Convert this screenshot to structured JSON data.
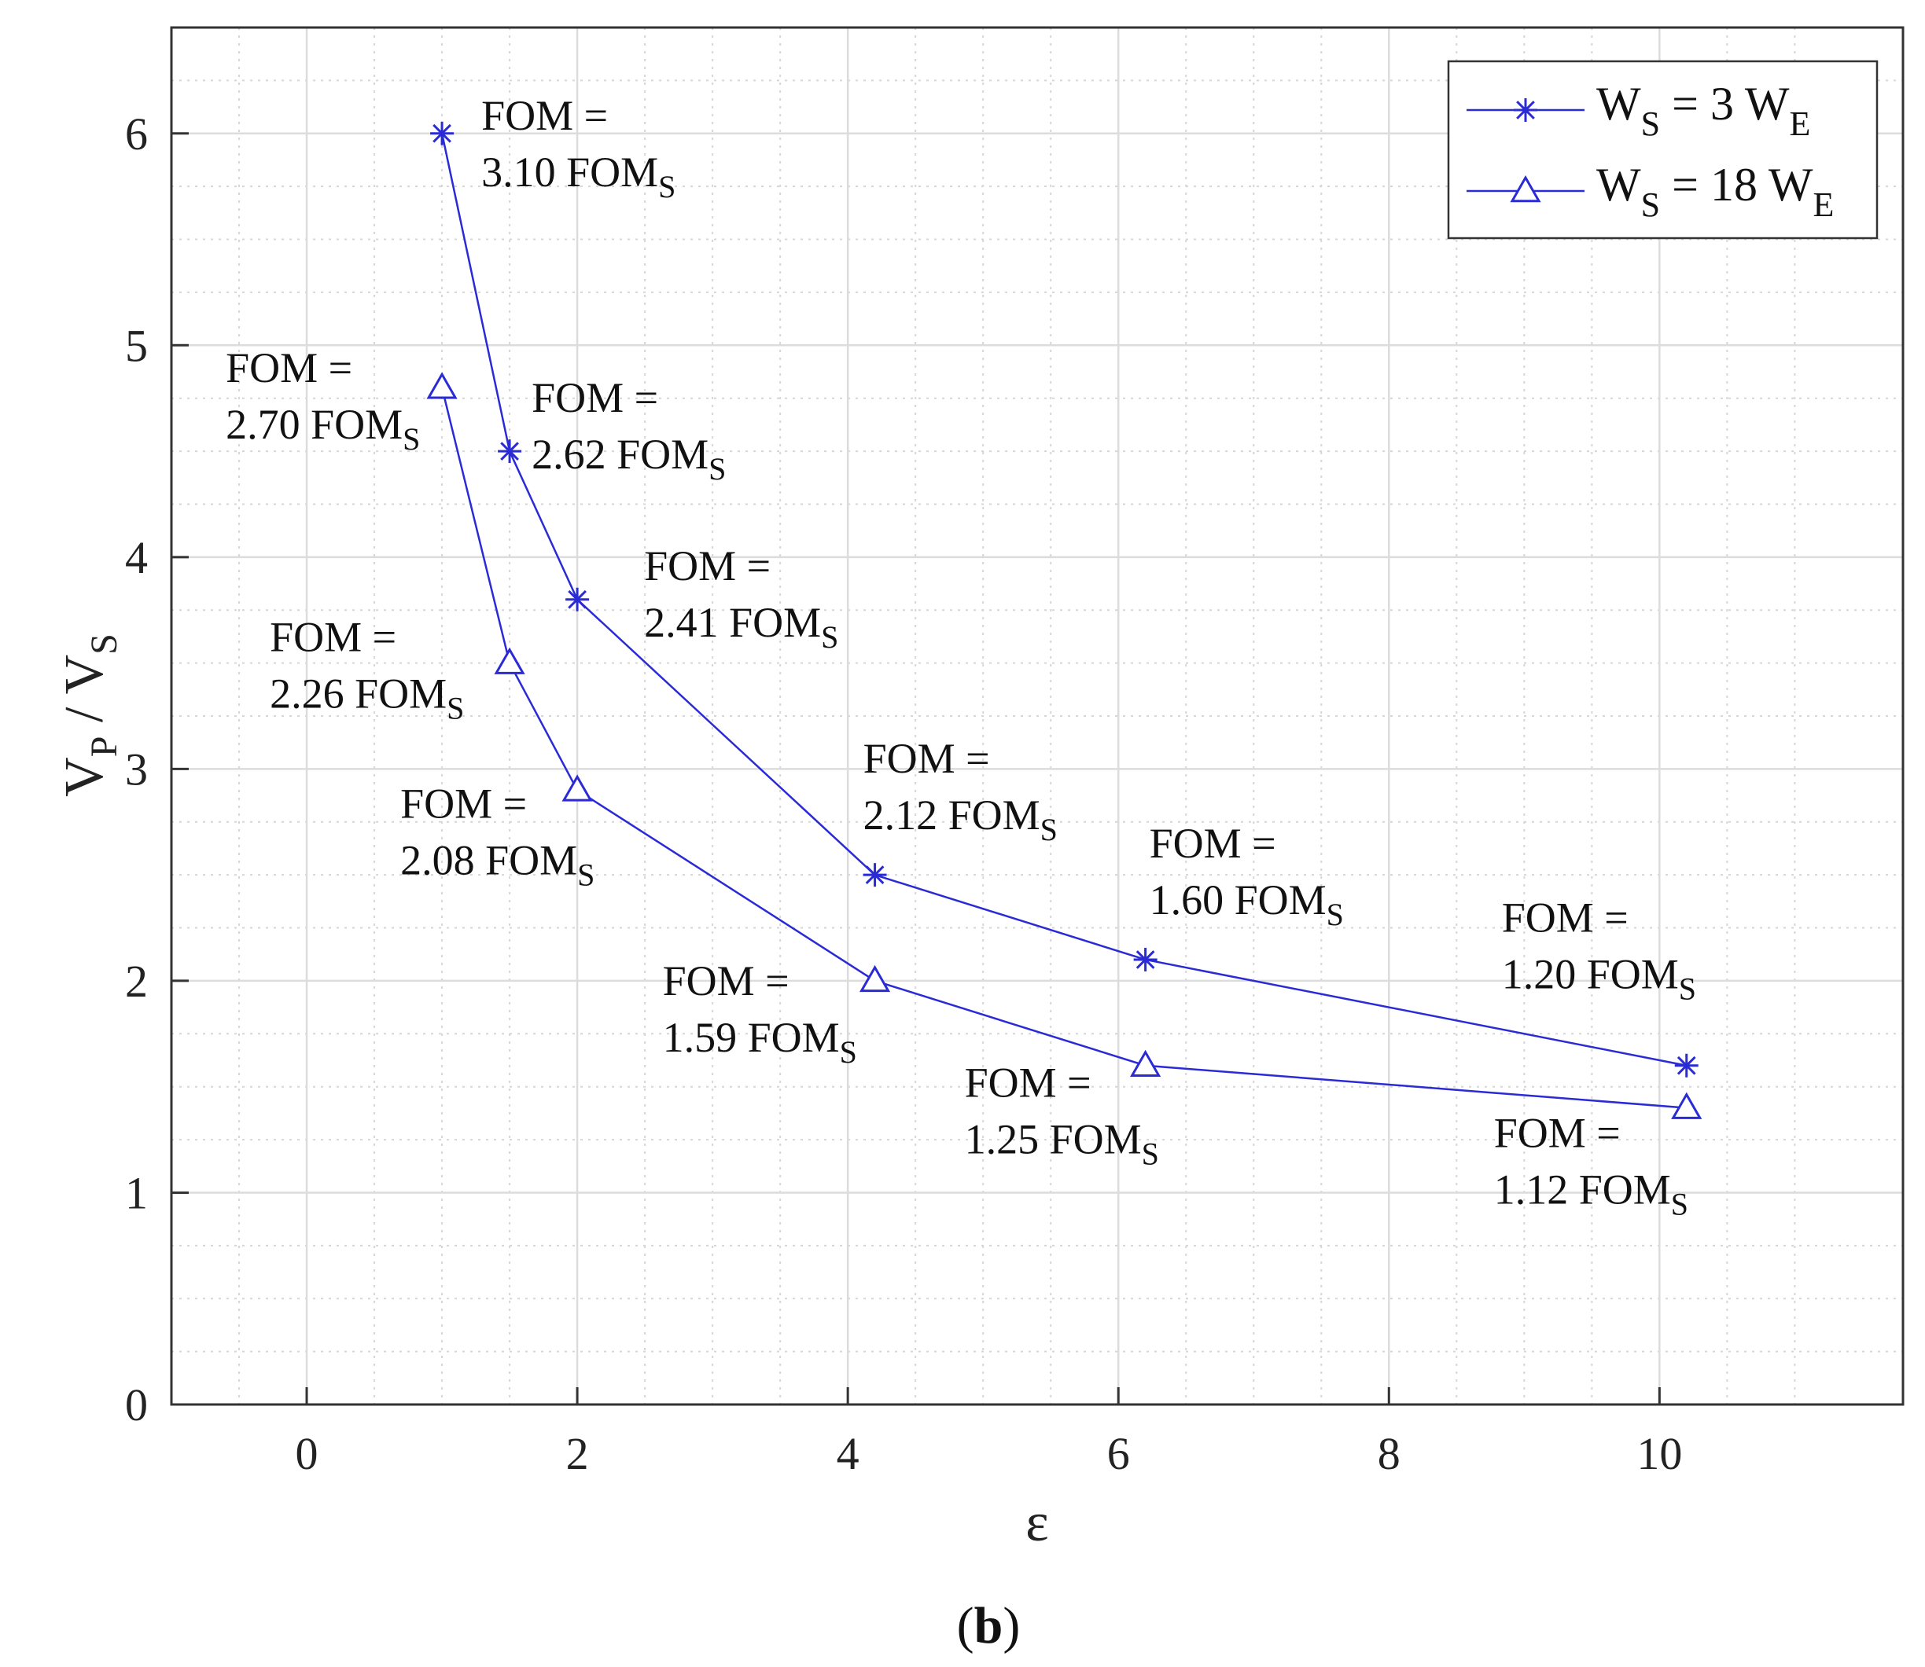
{
  "chart_data": {
    "type": "line",
    "title": "",
    "xlabel": "ε",
    "ylabel": {
      "main1": "V",
      "sub1": "P",
      "sep": " / ",
      "main2": "V",
      "sub2": "S"
    },
    "xlim": [
      -1,
      11.8
    ],
    "ylim": [
      0,
      6.5
    ],
    "xticks": [
      0,
      2,
      4,
      6,
      8,
      10
    ],
    "yticks": [
      0,
      1,
      2,
      3,
      4,
      5,
      6
    ],
    "grid": true,
    "legend_position": "top-right",
    "series": [
      {
        "name": "WS = 3 WE",
        "legend": {
          "main": "W",
          "sub": "S",
          "mid": " = 3 W",
          "sub2": "E"
        },
        "marker": "asterisk",
        "color": "#2b2bd6",
        "x": [
          1,
          1.5,
          2,
          4.2,
          6.2,
          10.2
        ],
        "y": [
          6.0,
          4.5,
          3.8,
          2.5,
          2.1,
          1.6
        ],
        "annotations": [
          {
            "line1": "FOM =",
            "line2": "3.10 FOM",
            "sub": "S"
          },
          {
            "line1": "FOM =",
            "line2": "2.62 FOM",
            "sub": "S"
          },
          {
            "line1": "FOM =",
            "line2": "2.41 FOM",
            "sub": "S"
          },
          {
            "line1": "FOM =",
            "line2": "2.12 FOM",
            "sub": "S"
          },
          {
            "line1": "FOM =",
            "line2": "1.60 FOM",
            "sub": "S"
          },
          {
            "line1": "FOM =",
            "line2": "1.20 FOM",
            "sub": "S"
          }
        ]
      },
      {
        "name": "WS = 18 WE",
        "legend": {
          "main": "W",
          "sub": "S",
          "mid": " = 18 W",
          "sub2": "E"
        },
        "marker": "triangle",
        "color": "#2b2bd6",
        "x": [
          1,
          1.5,
          2,
          4.2,
          6.2,
          10.2
        ],
        "y": [
          4.8,
          3.5,
          2.9,
          2.0,
          1.6,
          1.4
        ],
        "annotations": [
          {
            "line1": "FOM =",
            "line2": "2.70 FOM",
            "sub": "S"
          },
          {
            "line1": "FOM =",
            "line2": "2.26 FOM",
            "sub": "S"
          },
          {
            "line1": "FOM =",
            "line2": "2.08 FOM",
            "sub": "S"
          },
          {
            "line1": "FOM =",
            "line2": "1.59 FOM",
            "sub": "S"
          },
          {
            "line1": "FOM =",
            "line2": "1.25 FOM",
            "sub": "S"
          },
          {
            "line1": "FOM =",
            "line2": "1.12 FOM",
            "sub": "S"
          }
        ]
      }
    ]
  },
  "panel_label": {
    "open": "(",
    "letter": "b",
    "close": ")"
  }
}
